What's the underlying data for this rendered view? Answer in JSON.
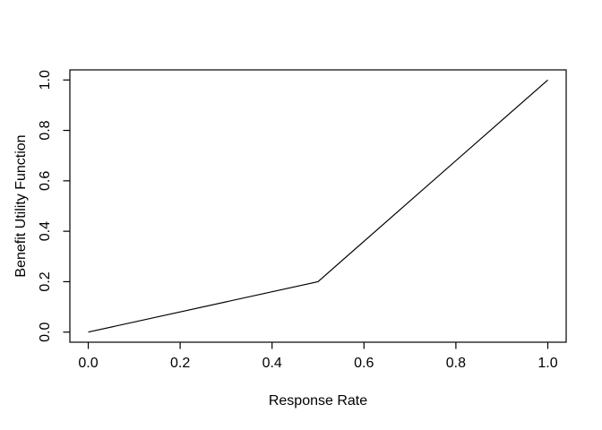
{
  "chart_data": {
    "type": "line",
    "title": "",
    "xlabel": "Response Rate",
    "ylabel": "Benefit Utility Function",
    "x": [
      0.0,
      0.5,
      1.0
    ],
    "y": [
      0.0,
      0.2,
      1.0
    ],
    "x_tick_values": [
      0.0,
      0.2,
      0.4,
      0.6,
      0.8,
      1.0
    ],
    "x_tick_labels": [
      "0.0",
      "0.2",
      "0.4",
      "0.6",
      "0.8",
      "1.0"
    ],
    "y_tick_values": [
      0.0,
      0.2,
      0.4,
      0.6,
      0.8,
      1.0
    ],
    "y_tick_labels": [
      "0.0",
      "0.2",
      "0.4",
      "0.6",
      "0.8",
      "1.0"
    ],
    "xlim": [
      -0.04,
      1.04
    ],
    "ylim": [
      -0.04,
      1.04
    ],
    "grid": false,
    "legend": null,
    "line_color": "#000000",
    "axis_color": "#000000",
    "text_color": "#000000",
    "background": "#ffffff"
  }
}
